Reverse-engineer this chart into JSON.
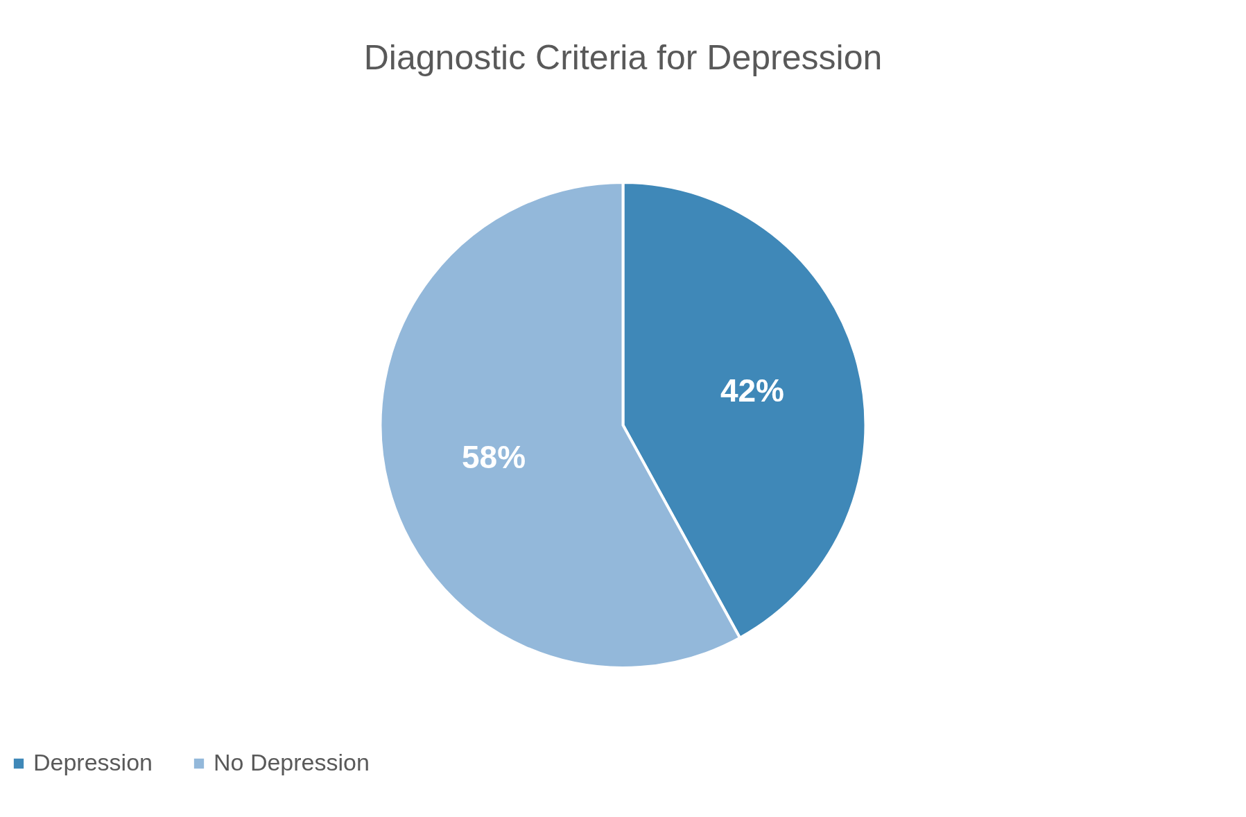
{
  "chart_data": {
    "type": "pie",
    "title": "Diagnostic Criteria for Depression",
    "categories": [
      "Depression",
      "No Depression"
    ],
    "values": [
      42,
      58
    ],
    "colors": [
      "#3f88b8",
      "#93b8da"
    ],
    "value_labels": [
      "42%",
      "58%"
    ],
    "legend": "bottom"
  }
}
